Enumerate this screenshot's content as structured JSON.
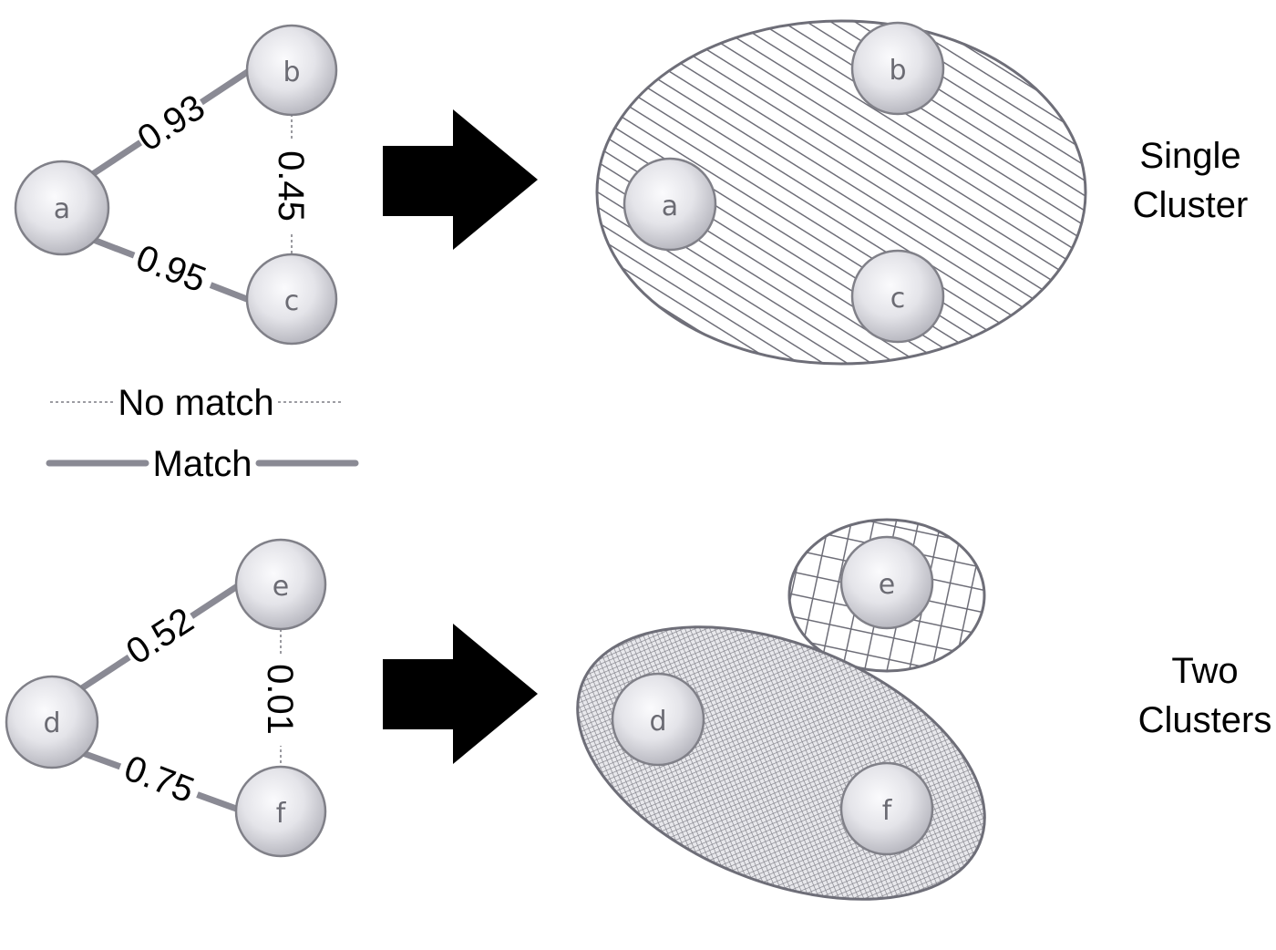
{
  "colors": {
    "edge_match": "#8a8a94",
    "edge_nomatch": "#8f8f95",
    "node_fill": "#e6e6ea",
    "node_stroke": "#808088",
    "arrow": "#000000",
    "cluster_stroke": "#6e6e78"
  },
  "top": {
    "nodes": {
      "a": "a",
      "b": "b",
      "c": "c"
    },
    "edges": {
      "ab": {
        "weight": "0.93",
        "type": "match"
      },
      "ac": {
        "weight": "0.95",
        "type": "match"
      },
      "bc": {
        "weight": "0.45",
        "type": "no-match"
      }
    },
    "result": {
      "nodes": {
        "a": "a",
        "b": "b",
        "c": "c"
      }
    },
    "caption": {
      "line1": "Single",
      "line2": "Cluster"
    }
  },
  "legend": {
    "no_match": "No match",
    "match": "Match"
  },
  "bottom": {
    "nodes": {
      "d": "d",
      "e": "e",
      "f": "f"
    },
    "edges": {
      "de": {
        "weight": "0.52",
        "type": "match"
      },
      "df": {
        "weight": "0.75",
        "type": "match"
      },
      "ef": {
        "weight": "0.01",
        "type": "no-match"
      }
    },
    "result": {
      "nodes": {
        "d": "d",
        "e": "e",
        "f": "f"
      }
    },
    "caption": {
      "line1": "Two",
      "line2": "Clusters"
    }
  }
}
